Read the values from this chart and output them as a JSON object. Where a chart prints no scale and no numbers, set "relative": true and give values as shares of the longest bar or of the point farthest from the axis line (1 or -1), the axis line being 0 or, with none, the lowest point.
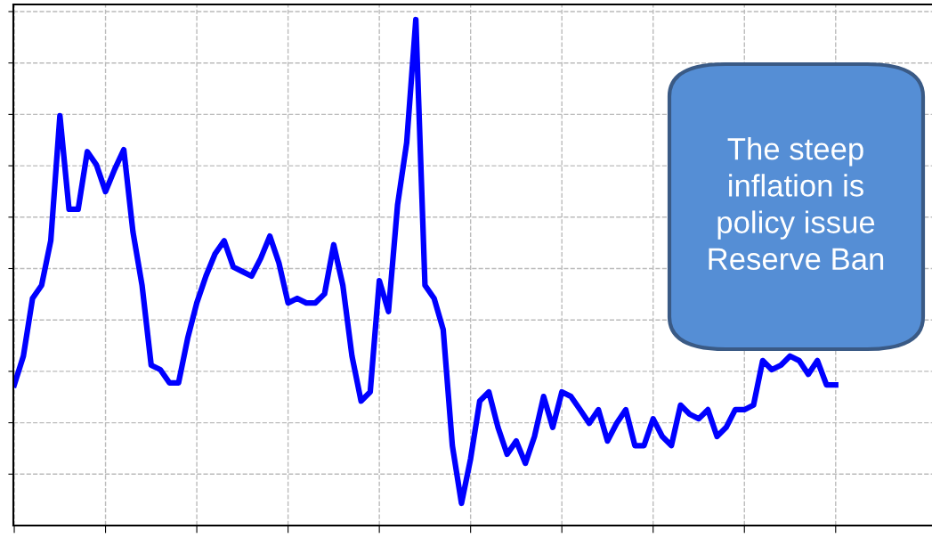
{
  "chart_data": {
    "type": "line",
    "relative": true,
    "grid": true,
    "tick_labels": false,
    "line_style": "solid",
    "marker": "none",
    "categories": [
      null,
      null,
      null,
      null,
      null,
      null,
      null,
      null,
      null,
      null,
      null,
      null,
      null,
      null,
      null,
      null,
      null,
      null,
      null,
      null,
      null,
      null,
      null,
      null,
      null,
      null,
      null,
      null,
      null,
      null,
      null,
      null,
      null,
      null,
      null,
      null,
      null,
      null,
      null,
      null,
      null,
      null,
      null,
      null,
      null,
      null,
      null,
      null,
      null,
      null,
      null,
      null,
      null,
      null,
      null,
      null,
      null,
      null,
      null,
      null,
      null,
      null,
      null,
      null,
      null,
      null,
      null,
      null,
      null,
      null,
      null,
      null,
      null,
      null,
      null,
      null,
      null,
      null,
      null,
      null,
      null,
      null,
      null,
      null,
      null,
      null,
      null,
      null,
      null,
      null,
      null
    ],
    "series": [
      {
        "color": "#0000ff",
        "values": [
          0.278,
          0.335,
          0.449,
          0.475,
          0.563,
          0.81,
          0.625,
          0.625,
          0.739,
          0.713,
          0.66,
          0.704,
          0.743,
          0.581,
          0.475,
          0.317,
          0.308,
          0.282,
          0.282,
          0.37,
          0.44,
          0.493,
          0.537,
          0.563,
          0.511,
          0.502,
          0.493,
          0.528,
          0.572,
          0.519,
          0.44,
          0.449,
          0.44,
          0.44,
          0.458,
          0.555,
          0.475,
          0.335,
          0.246,
          0.264,
          0.484,
          0.423,
          0.634,
          0.757,
          1,
          0.475,
          0.449,
          0.387,
          0.158,
          0.044,
          0.132,
          0.246,
          0.264,
          0.194,
          0.141,
          0.167,
          0.123,
          0.176,
          0.255,
          0.194,
          0.264,
          0.255,
          0.229,
          0.202,
          0.229,
          0.167,
          0.202,
          0.229,
          0.158,
          0.158,
          0.211,
          0.176,
          0.158,
          0.238,
          0.22,
          0.211,
          0.229,
          0.176,
          0.194,
          0.229,
          0.229,
          0.238,
          0.326,
          0.308,
          0.317,
          0.335,
          0.326,
          0.299,
          0.326,
          0.278,
          0.278
        ]
      }
    ],
    "annotations": [
      "The steep\ninflation is\npolicy issue\nReserve Ban"
    ]
  }
}
